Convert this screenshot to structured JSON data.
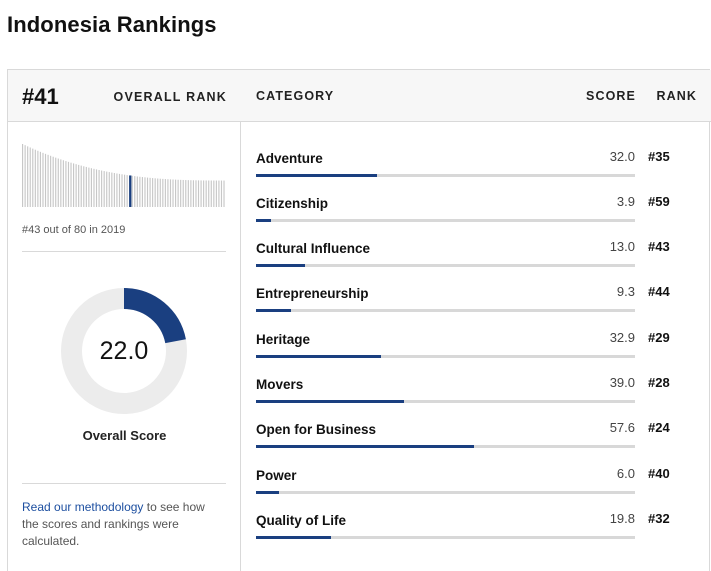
{
  "page": {
    "title": "Indonesia Rankings"
  },
  "overall": {
    "rank": "#41",
    "rank_label": "OVERALL RANK",
    "history_caption": "#43 out of 80 in 2019",
    "history_total": 80,
    "history_position": 43,
    "score": "22.0",
    "score_value": 22.0,
    "score_label": "Overall Score"
  },
  "methodology": {
    "link_text": "Read our methodology",
    "suffix": " to see how the scores and rankings were calculated."
  },
  "table": {
    "headers": {
      "category": "CATEGORY",
      "score": "SCORE",
      "rank": "RANK"
    },
    "rows": [
      {
        "name": "Adventure",
        "score": "32.0",
        "value": 32.0,
        "rank": "#35"
      },
      {
        "name": "Citizenship",
        "score": "3.9",
        "value": 3.9,
        "rank": "#59"
      },
      {
        "name": "Cultural Influence",
        "score": "13.0",
        "value": 13.0,
        "rank": "#43"
      },
      {
        "name": "Entrepreneurship",
        "score": "9.3",
        "value": 9.3,
        "rank": "#44"
      },
      {
        "name": "Heritage",
        "score": "32.9",
        "value": 32.9,
        "rank": "#29"
      },
      {
        "name": "Movers",
        "score": "39.0",
        "value": 39.0,
        "rank": "#28"
      },
      {
        "name": "Open for Business",
        "score": "57.6",
        "value": 57.6,
        "rank": "#24"
      },
      {
        "name": "Power",
        "score": "6.0",
        "value": 6.0,
        "rank": "#40"
      },
      {
        "name": "Quality of Life",
        "score": "19.8",
        "value": 19.8,
        "rank": "#32"
      }
    ]
  },
  "colors": {
    "accent": "#1a3f80",
    "track": "#d8d8d8",
    "donut_track": "#ececec",
    "link": "#1d4fa0"
  }
}
